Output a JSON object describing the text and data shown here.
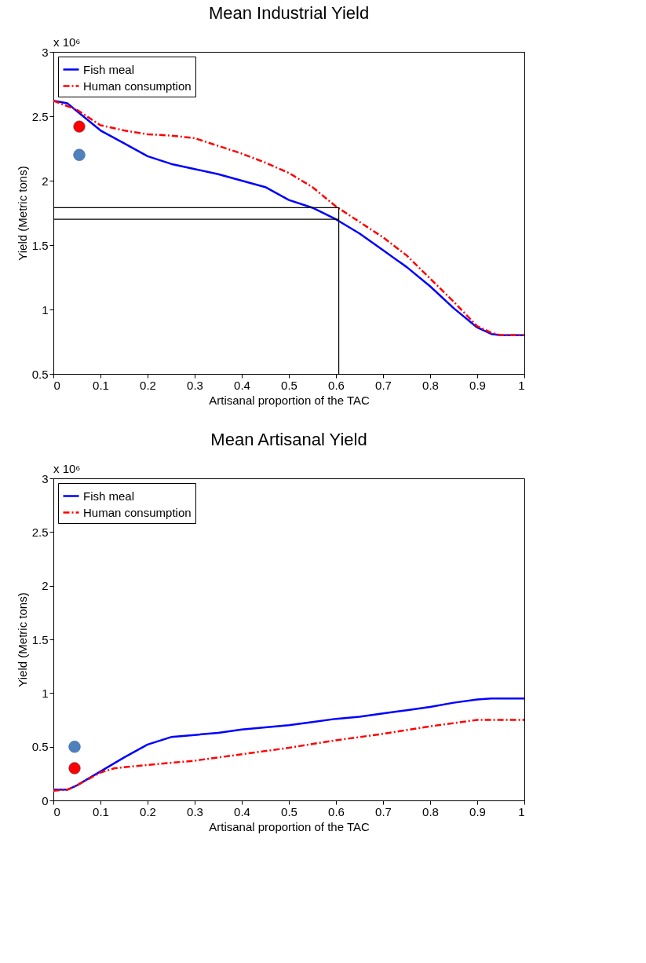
{
  "chart_data": [
    {
      "type": "line",
      "title": "Mean Industrial Yield",
      "xlabel": "Artisanal proportion of the TAC",
      "ylabel": "Yield (Metric tons)",
      "annotations": [
        "x 10⁶"
      ],
      "xlim": [
        0,
        1
      ],
      "xticks": [
        0,
        0.1,
        0.2,
        0.3,
        0.4,
        0.5,
        0.6,
        0.7,
        0.8,
        0.9,
        1
      ],
      "ylim": [
        0.5,
        3
      ],
      "yticks": [
        0.5,
        1,
        1.5,
        2,
        2.5,
        3
      ],
      "grid": false,
      "legend": "top left",
      "series": [
        {
          "name": "Fish meal",
          "color": "#0000ff",
          "line_style": "solid",
          "x": [
            0,
            0.03,
            0.05,
            0.1,
            0.15,
            0.2,
            0.25,
            0.3,
            0.35,
            0.4,
            0.45,
            0.5,
            0.55,
            0.6,
            0.65,
            0.7,
            0.75,
            0.8,
            0.85,
            0.9,
            0.93,
            0.95,
            1
          ],
          "values": [
            2.62,
            2.6,
            2.54,
            2.39,
            2.29,
            2.19,
            2.13,
            2.09,
            2.05,
            2.0,
            1.95,
            1.85,
            1.79,
            1.7,
            1.59,
            1.46,
            1.33,
            1.18,
            1.01,
            0.86,
            0.81,
            0.8,
            0.8
          ]
        },
        {
          "name": "Human consumption",
          "color": "#ff0000",
          "line_style": "dashed",
          "x": [
            0,
            0.05,
            0.1,
            0.15,
            0.2,
            0.25,
            0.3,
            0.35,
            0.4,
            0.45,
            0.5,
            0.55,
            0.6,
            0.65,
            0.7,
            0.75,
            0.8,
            0.85,
            0.9,
            0.93,
            0.95,
            1
          ],
          "values": [
            2.62,
            2.55,
            2.43,
            2.39,
            2.36,
            2.35,
            2.33,
            2.27,
            2.21,
            2.14,
            2.06,
            1.95,
            1.8,
            1.68,
            1.56,
            1.42,
            1.24,
            1.06,
            0.87,
            0.82,
            0.8,
            0.8
          ]
        },
        {
          "type": "line",
          "color": "#000000",
          "line_style": "solid",
          "x": [
            0,
            0.606,
            0.606
          ],
          "values": [
            1.79,
            1.79,
            0.5
          ]
        },
        {
          "type": "line",
          "color": "#000000",
          "line_style": "solid",
          "x": [
            0,
            0.606
          ],
          "values": [
            1.7,
            1.7
          ]
        },
        {
          "type": "scatter",
          "color": "#ff0000",
          "marker": "circle",
          "x": [
            0.055
          ],
          "values": [
            2.42
          ]
        },
        {
          "type": "scatter",
          "color": "#4f81bd",
          "marker": "circle",
          "x": [
            0.055
          ],
          "values": [
            2.2
          ]
        }
      ]
    },
    {
      "type": "line",
      "title": "Mean Artisanal Yield",
      "xlabel": "Artisanal proportion of the TAC",
      "ylabel": "Yield (Metric tons)",
      "annotations": [
        "x 10⁶"
      ],
      "xlim": [
        0,
        1
      ],
      "xticks": [
        0,
        0.1,
        0.2,
        0.3,
        0.4,
        0.5,
        0.6,
        0.7,
        0.8,
        0.9,
        1
      ],
      "ylim": [
        0,
        3
      ],
      "yticks": [
        0,
        0.5,
        1,
        1.5,
        2,
        2.5,
        3
      ],
      "grid": false,
      "legend": "top left",
      "series": [
        {
          "name": "Fish meal",
          "color": "#0000ff",
          "line_style": "solid",
          "x": [
            0,
            0.03,
            0.05,
            0.1,
            0.15,
            0.2,
            0.25,
            0.3,
            0.35,
            0.4,
            0.45,
            0.5,
            0.55,
            0.6,
            0.65,
            0.7,
            0.75,
            0.8,
            0.85,
            0.9,
            0.93,
            1
          ],
          "values": [
            0.1,
            0.1,
            0.14,
            0.27,
            0.4,
            0.52,
            0.59,
            0.61,
            0.63,
            0.66,
            0.68,
            0.7,
            0.73,
            0.76,
            0.78,
            0.81,
            0.84,
            0.87,
            0.91,
            0.94,
            0.95,
            0.95
          ]
        },
        {
          "name": "Human consumption",
          "color": "#ff0000",
          "line_style": "dashed",
          "x": [
            0,
            0.03,
            0.05,
            0.1,
            0.13,
            0.2,
            0.3,
            0.4,
            0.5,
            0.6,
            0.7,
            0.8,
            0.9,
            1
          ],
          "values": [
            0.09,
            0.1,
            0.14,
            0.26,
            0.3,
            0.33,
            0.37,
            0.43,
            0.49,
            0.56,
            0.62,
            0.69,
            0.75,
            0.75
          ]
        },
        {
          "type": "scatter",
          "color": "#4f81bd",
          "marker": "circle",
          "x": [
            0.045
          ],
          "values": [
            0.5
          ]
        },
        {
          "type": "scatter",
          "color": "#ff0000",
          "marker": "circle",
          "x": [
            0.045
          ],
          "values": [
            0.3
          ]
        }
      ]
    }
  ]
}
